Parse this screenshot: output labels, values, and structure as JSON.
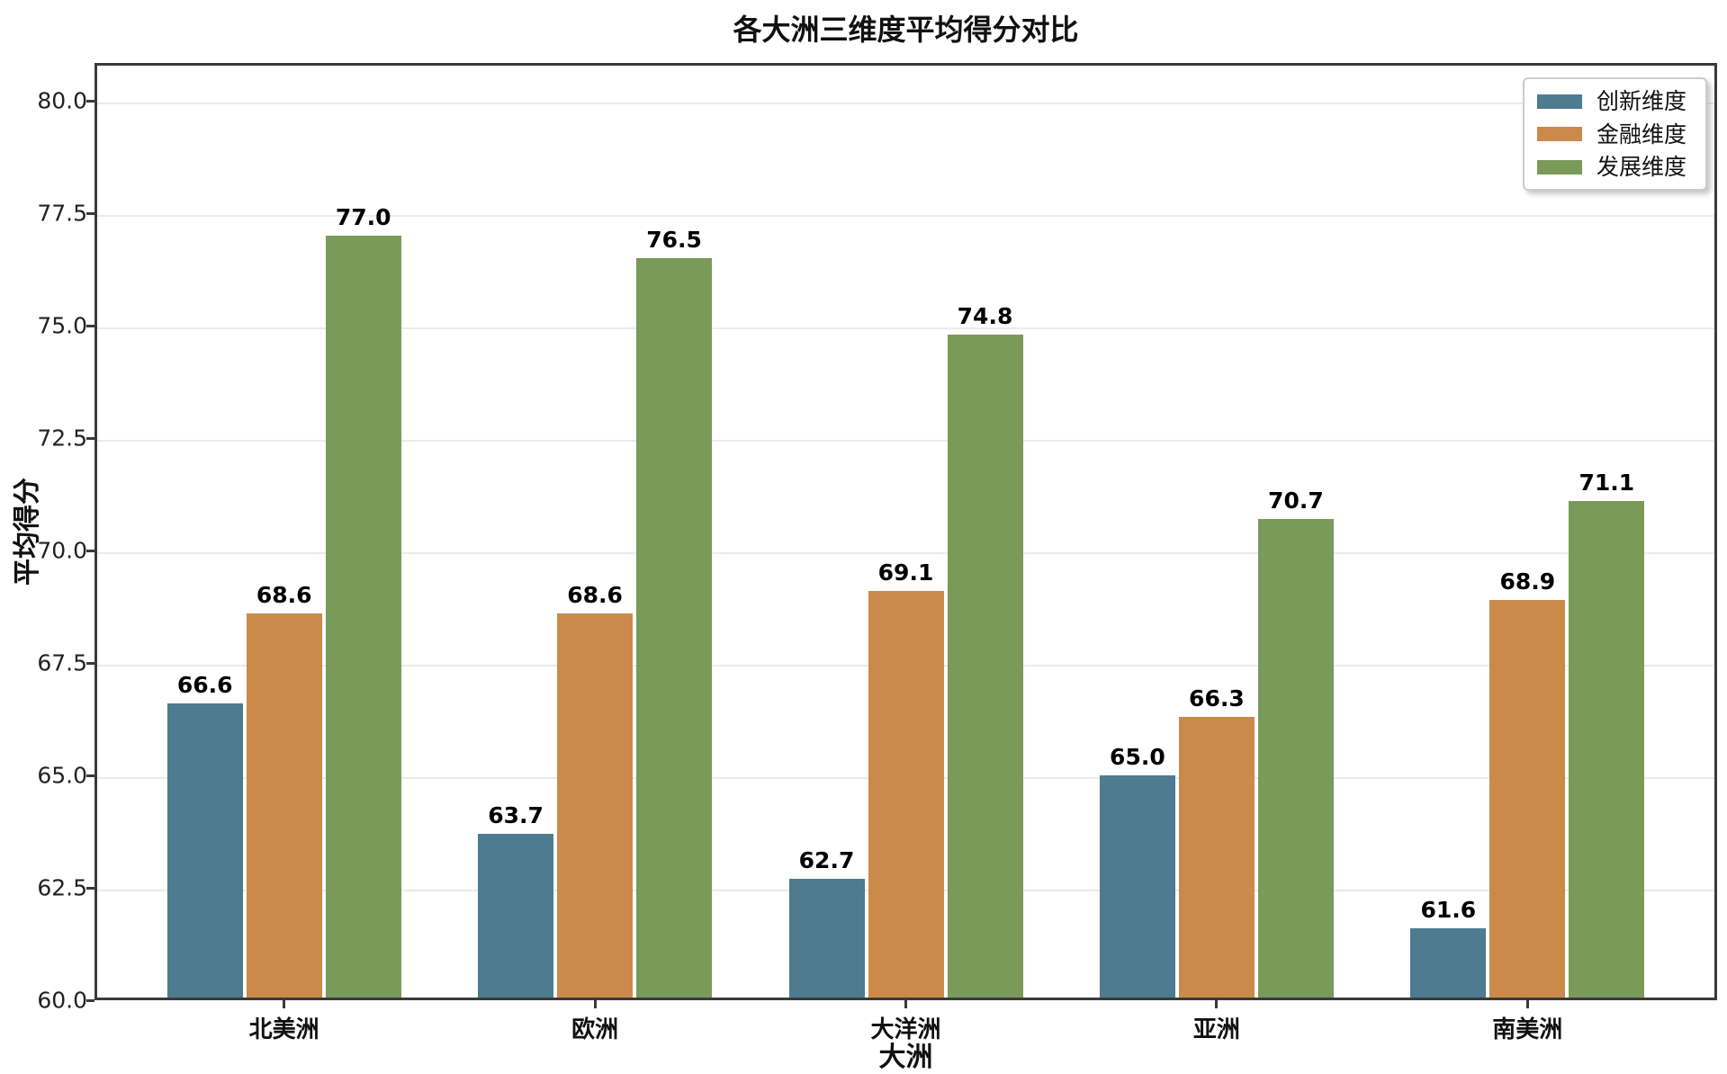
{
  "chart_data": {
    "type": "bar",
    "title": "各大洲三维度平均得分对比",
    "xlabel": "大洲",
    "ylabel": "平均得分",
    "categories": [
      "北美洲",
      "欧洲",
      "大洋洲",
      "亚洲",
      "南美洲"
    ],
    "series": [
      {
        "name": "创新维度",
        "color": "#4d7b8f",
        "values": [
          66.6,
          63.7,
          62.7,
          65.0,
          61.6
        ]
      },
      {
        "name": "金融维度",
        "color": "#cc8a4a",
        "values": [
          68.6,
          68.6,
          69.1,
          66.3,
          68.9
        ]
      },
      {
        "name": "发展维度",
        "color": "#7a9a59",
        "values": [
          77.0,
          76.5,
          74.8,
          70.7,
          71.1
        ]
      }
    ],
    "ylim": [
      60.0,
      80.84
    ],
    "yticks": [
      60.0,
      62.5,
      65.0,
      67.5,
      70.0,
      72.5,
      75.0,
      77.5,
      80.0
    ],
    "ytick_labels": [
      "60.0",
      "62.5",
      "65.0",
      "67.5",
      "70.0",
      "72.5",
      "75.0",
      "77.5",
      "80.0"
    ],
    "grid": true,
    "grid_axis": "y",
    "legend_position": "upper right",
    "bar_value_labels": true,
    "value_label_format": "0.1f"
  },
  "colors": {
    "background": "#ffffff",
    "spine": "#3a3a3a",
    "gridline": "#ebebeb",
    "text": "#111111",
    "series_innovation": "#4d7b8f",
    "series_finance": "#cc8a4a",
    "series_development": "#7a9a59"
  }
}
